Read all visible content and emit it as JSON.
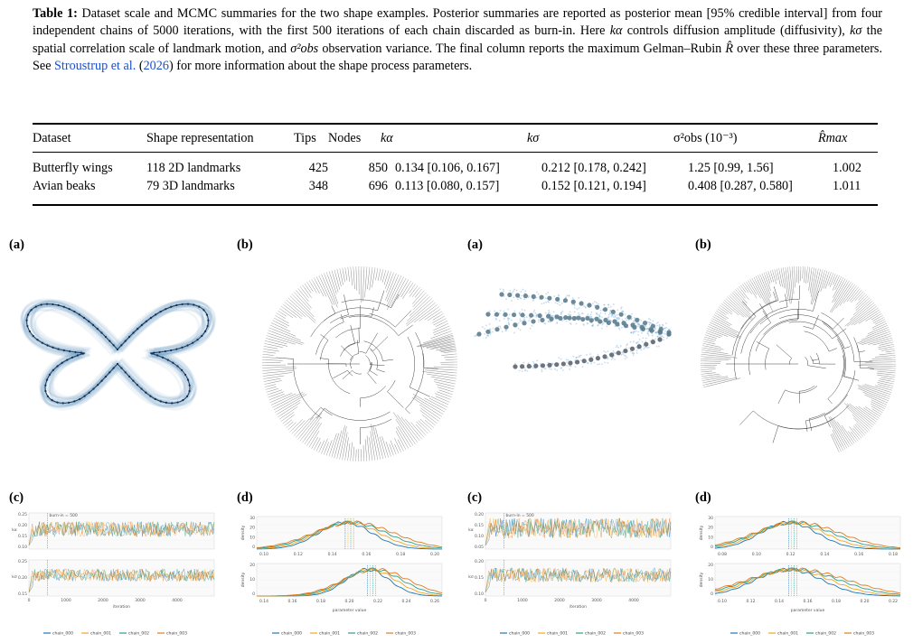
{
  "caption": {
    "label": "Table 1:",
    "text1": "Dataset scale and MCMC summaries for the two shape examples. Posterior summaries are reported as posterior mean [95% credible interval] from four independent chains of 5000 iterations, with the first 500 iterations of each chain discarded as burn-in. Here ",
    "sym_k_alpha": "kα",
    "text2": " controls diffusion amplitude (diffusivity), ",
    "sym_k_sigma": "kσ",
    "text3": " the spatial correlation scale of landmark motion, and ",
    "sym_sigma_obs": "σ²obs",
    "text4": " observation variance. The final column reports the maximum Gelman–Rubin ",
    "sym_rhat": "R̂",
    "text5": " over these three parameters. See ",
    "ref_author": "Stroustrup et al.",
    "ref_open": " (",
    "ref_year": "2026",
    "ref_close": ")",
    "text6": " for more information about the shape process parameters."
  },
  "table": {
    "headers": [
      "Dataset",
      "Shape representation",
      "Tips",
      "Nodes",
      "kα",
      "kσ",
      "σ²obs (10⁻³)",
      "R̂max"
    ],
    "rows": [
      [
        "Butterfly wings",
        "118 2D landmarks",
        "425",
        "850",
        "0.134 [0.106, 0.167]",
        "0.212 [0.178, 0.242]",
        "1.25 [0.99, 1.56]",
        "1.002"
      ],
      [
        "Avian beaks",
        "79 3D landmarks",
        "348",
        "696",
        "0.113 [0.080, 0.157]",
        "0.152 [0.121, 0.194]",
        "0.408 [0.287, 0.580]",
        "1.011"
      ]
    ]
  },
  "panels": {
    "labels": [
      "(a)",
      "(b)",
      "(a)",
      "(b)",
      "(c)",
      "(d)",
      "(c)",
      "(d)"
    ]
  },
  "trace": {
    "burnin_label": "burn-in = 500",
    "xlabel": "iteration",
    "x_ticks": [
      "0",
      "1000",
      "2000",
      "3000",
      "4000"
    ],
    "left_top_yticks": [
      "0.25",
      "0.20",
      "0.15",
      "0.10"
    ],
    "left_bot_yticks": [
      "0.25",
      "0.20",
      "0.15"
    ],
    "right_top_yticks": [
      "0.20",
      "0.15",
      "0.10",
      "0.05"
    ],
    "right_bot_yticks": [
      "0.20",
      "0.15",
      "0.10"
    ],
    "param_top": "kα",
    "param_bot": "kσ"
  },
  "density": {
    "ylabel": "density",
    "xlabel": "parameter value",
    "left_top_xticks": [
      "0.10",
      "0.12",
      "0.14",
      "0.16",
      "0.18",
      "0.20"
    ],
    "left_bot_xticks": [
      "0.14",
      "0.16",
      "0.18",
      "0.20",
      "0.22",
      "0.24",
      "0.26"
    ],
    "right_top_xticks": [
      "0.08",
      "0.10",
      "0.12",
      "0.14",
      "0.16",
      "0.18"
    ],
    "right_bot_xticks": [
      "0.10",
      "0.12",
      "0.14",
      "0.16",
      "0.18",
      "0.20",
      "0.22"
    ],
    "yticks_top": [
      "30",
      "20",
      "10",
      "0"
    ],
    "yticks_bot": [
      "20",
      "10",
      "0"
    ]
  },
  "legend": [
    "chain_000",
    "chain_001",
    "chain_002",
    "chain_003"
  ],
  "colors": {
    "chain_000": "#1f77b4",
    "chain_001": "#f5a623",
    "chain_002": "#2ca089",
    "chain_003": "#e07b1f",
    "link": "#1a4fd0",
    "shape_blue": "#5b8fc0"
  }
}
